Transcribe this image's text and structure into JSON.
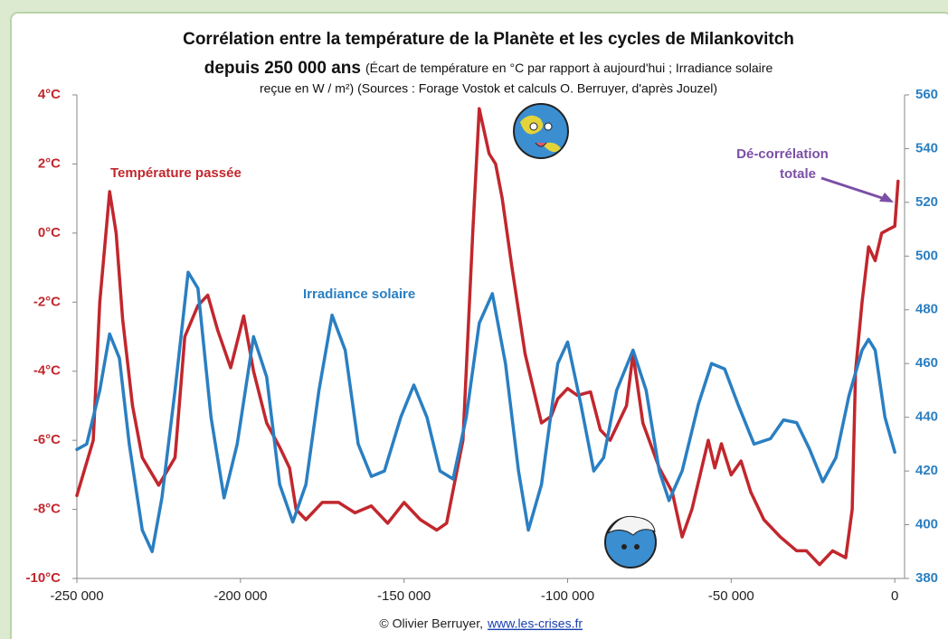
{
  "chart_data": {
    "type": "line",
    "title": "Corrélation entre la température de la Planète et les cycles de Milankovitch",
    "subtitle_bold": "depuis 250 000 ans",
    "subtitle": "(Écart de température en °C par rapport à aujourd'hui ; Irradiance solaire",
    "subtitle_2": "reçue en W / m²) (Sources : Forage Vostok et calculs O. Berruyer, d'après Jouzel)",
    "annotation_lines": [
      "Dé-corrélation",
      "totale"
    ],
    "source": "© Olivier Berruyer,",
    "source_link": "www.les-crises.fr",
    "xlim": [
      -250000,
      3000
    ],
    "xticks": [
      {
        "value": -250000,
        "label": "-250 000"
      },
      {
        "value": -200000,
        "label": "-200 000"
      },
      {
        "value": -150000,
        "label": "-150 000"
      },
      {
        "value": -100000,
        "label": "-100 000"
      },
      {
        "value": -50000,
        "label": "-50 000"
      },
      0
    ],
    "ylim": [
      -10,
      4
    ],
    "yticks": [
      {
        "value": -10,
        "label": "-10°C"
      },
      {
        "value": -8,
        "label": "-8°C"
      },
      {
        "value": -6,
        "label": "-6°C"
      },
      {
        "value": -4,
        "label": "-4°C"
      },
      {
        "value": -2,
        "label": "-2°C"
      },
      {
        "value": 0,
        "label": "0°C"
      },
      {
        "value": 2,
        "label": "2°C"
      },
      {
        "value": 4,
        "label": "4°C"
      }
    ],
    "y2lim": [
      380,
      560
    ],
    "y2ticks": [
      380,
      400,
      420,
      440,
      460,
      480,
      500,
      520,
      540,
      560
    ],
    "series": [
      {
        "name": "Température passée",
        "color": "#c1272d",
        "x": [
          -250000,
          -245000,
          -243000,
          -240000,
          -238000,
          -236000,
          -233000,
          -230000,
          -225000,
          -220000,
          -217000,
          -213000,
          -210000,
          -207000,
          -203000,
          -199000,
          -196000,
          -192000,
          -188000,
          -185000,
          -183000,
          -180000,
          -175000,
          -170000,
          -165000,
          -160000,
          -155000,
          -150000,
          -145000,
          -140000,
          -137000,
          -132000,
          -129000,
          -127000,
          -124000,
          -122000,
          -120000,
          -117000,
          -113000,
          -108000,
          -105000,
          -103000,
          -100000,
          -97000,
          -93000,
          -90000,
          -87000,
          -82000,
          -80000,
          -77000,
          -72000,
          -68000,
          -65000,
          -62000,
          -57000,
          -55000,
          -53000,
          -50000,
          -47000,
          -44000,
          -40000,
          -35000,
          -30000,
          -27000,
          -23000,
          -19000,
          -15000,
          -13000,
          -12000,
          -10000,
          -8000,
          -6000,
          -4000,
          -2000,
          0,
          1000
        ],
        "values": [
          -7.6,
          -6,
          -2,
          1.2,
          0,
          -2.5,
          -5,
          -6.5,
          -7.3,
          -6.5,
          -3,
          -2.1,
          -1.8,
          -2.8,
          -3.9,
          -2.4,
          -4,
          -5.5,
          -6.2,
          -6.8,
          -8,
          -8.3,
          -7.8,
          -7.8,
          -8.1,
          -7.9,
          -8.4,
          -7.8,
          -8.3,
          -8.6,
          -8.4,
          -6,
          0,
          3.6,
          2.3,
          2,
          1,
          -1,
          -3.5,
          -5.5,
          -5.3,
          -4.8,
          -4.5,
          -4.7,
          -4.6,
          -5.7,
          -6,
          -5,
          -3.5,
          -5.5,
          -6.8,
          -7.5,
          -8.8,
          -8,
          -6,
          -6.8,
          -6.1,
          -7,
          -6.6,
          -7.5,
          -8.3,
          -8.8,
          -9.2,
          -9.2,
          -9.6,
          -9.2,
          -9.4,
          -8,
          -4,
          -2,
          -0.4,
          -0.8,
          0,
          0.1,
          0.2,
          1.5
        ]
      },
      {
        "name": "Irradiance solaire",
        "color": "#2a7fc2",
        "axis": "y2",
        "x": [
          -250000,
          -247000,
          -243000,
          -240000,
          -237000,
          -234000,
          -230000,
          -227000,
          -224000,
          -220000,
          -216000,
          -213000,
          -209000,
          -205000,
          -201000,
          -196000,
          -192000,
          -188000,
          -184000,
          -180000,
          -176000,
          -172000,
          -168000,
          -164000,
          -160000,
          -156000,
          -151000,
          -147000,
          -143000,
          -139000,
          -135000,
          -131000,
          -127000,
          -123000,
          -119000,
          -115000,
          -112000,
          -108000,
          -103000,
          -100000,
          -96000,
          -92000,
          -89000,
          -85000,
          -80000,
          -76000,
          -72000,
          -69000,
          -65000,
          -60000,
          -56000,
          -52000,
          -48000,
          -43000,
          -38000,
          -34000,
          -30000,
          -26000,
          -22000,
          -18000,
          -14000,
          -10000,
          -8000,
          -6000,
          -3000,
          0
        ],
        "values": [
          428,
          430,
          450,
          471,
          462,
          430,
          398,
          390,
          410,
          450,
          494,
          488,
          440,
          410,
          430,
          470,
          455,
          415,
          401,
          415,
          450,
          478,
          465,
          430,
          418,
          420,
          440,
          452,
          440,
          420,
          417,
          440,
          475,
          486,
          460,
          420,
          398,
          415,
          460,
          468,
          445,
          420,
          425,
          450,
          465,
          450,
          420,
          409,
          420,
          445,
          460,
          458,
          445,
          430,
          432,
          439,
          438,
          428,
          416,
          425,
          448,
          465,
          469,
          465,
          440,
          427
        ]
      }
    ]
  }
}
